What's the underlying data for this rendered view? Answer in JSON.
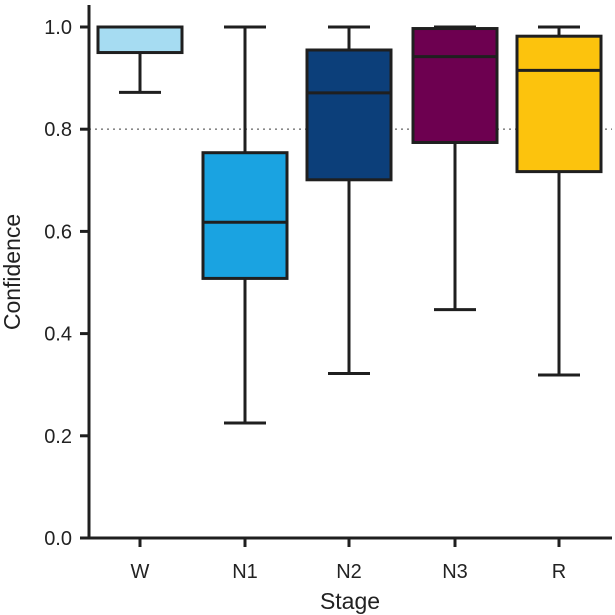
{
  "chart_data": {
    "type": "box",
    "title": "",
    "xlabel": "Stage",
    "ylabel": "Confidence",
    "ylim": [
      0,
      1.04
    ],
    "y_ticks": [
      0.0,
      0.2,
      0.4,
      0.6,
      0.8,
      1.0
    ],
    "y_tick_labels": [
      "0.0",
      "0.2",
      "0.4",
      "0.6",
      "0.8",
      "1.0"
    ],
    "categories": [
      "W",
      "N1",
      "N2",
      "N3",
      "R"
    ],
    "boxes": [
      {
        "category": "W",
        "whisker_low": 0.872,
        "q1": 0.95,
        "median": 1.0,
        "q3": 1.0,
        "whisker_high": 1.0,
        "color": "#a6dcf2"
      },
      {
        "category": "N1",
        "whisker_low": 0.225,
        "q1": 0.508,
        "median": 0.618,
        "q3": 0.754,
        "whisker_high": 1.0,
        "color": "#1aa3e1"
      },
      {
        "category": "N2",
        "whisker_low": 0.322,
        "q1": 0.701,
        "median": 0.871,
        "q3": 0.955,
        "whisker_high": 1.0,
        "color": "#0c3f7a"
      },
      {
        "category": "N3",
        "whisker_low": 0.447,
        "q1": 0.774,
        "median": 0.942,
        "q3": 0.997,
        "whisker_high": 1.0,
        "color": "#6d0050"
      },
      {
        "category": "R",
        "whisker_low": 0.319,
        "q1": 0.717,
        "median": 0.915,
        "q3": 0.982,
        "whisker_high": 1.0,
        "color": "#fcc30d"
      }
    ],
    "reference_line": {
      "value": 0.8,
      "style": "dotted",
      "color": "#888888"
    },
    "grid": false,
    "legend": "none"
  }
}
